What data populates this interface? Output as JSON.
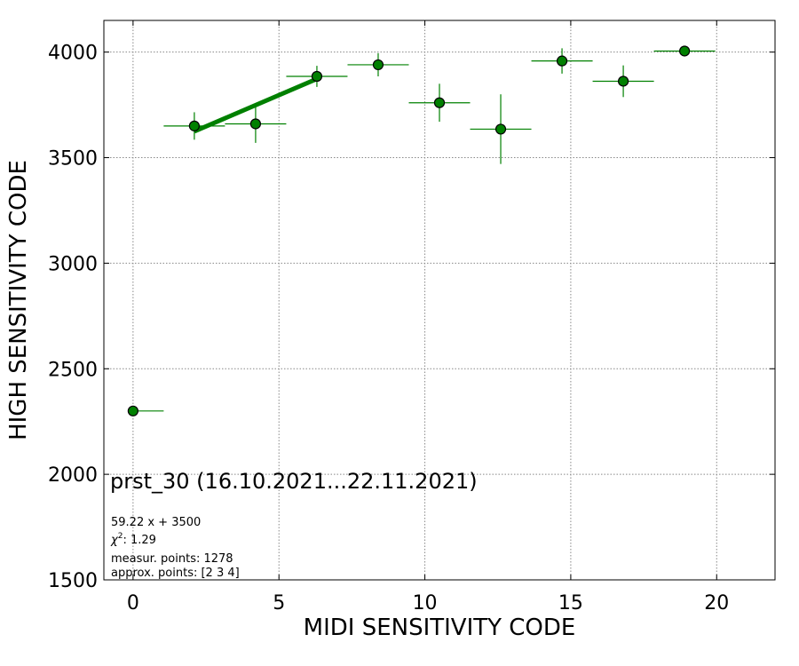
{
  "chart_data": {
    "type": "scatter",
    "title": "prst_30 (16.10.2021...22.11.2021)",
    "xlabel": "MIDI SENSITIVITY CODE",
    "ylabel": "HIGH SENSITIVITY CODE",
    "xlim": [
      -1,
      22
    ],
    "ylim": [
      1500,
      4150
    ],
    "xticks": [
      0,
      5,
      10,
      15,
      20
    ],
    "yticks": [
      1500,
      2000,
      2500,
      3000,
      3500,
      4000
    ],
    "grid": true,
    "marker_color": "#008000",
    "points": [
      {
        "x": 0.0,
        "y": 2300,
        "xerr": [
          0.0,
          1.05
        ],
        "yerr": [
          0,
          0
        ]
      },
      {
        "x": 2.1,
        "y": 3650,
        "xerr": [
          1.05,
          1.05
        ],
        "yerr": [
          65,
          65
        ]
      },
      {
        "x": 4.2,
        "y": 3660,
        "xerr": [
          1.05,
          1.05
        ],
        "yerr": [
          90,
          90
        ]
      },
      {
        "x": 6.3,
        "y": 3885,
        "xerr": [
          1.05,
          1.05
        ],
        "yerr": [
          50,
          50
        ]
      },
      {
        "x": 8.4,
        "y": 3940,
        "xerr": [
          1.05,
          1.05
        ],
        "yerr": [
          55,
          55
        ]
      },
      {
        "x": 10.5,
        "y": 3760,
        "xerr": [
          1.05,
          1.05
        ],
        "yerr": [
          90,
          90
        ]
      },
      {
        "x": 12.6,
        "y": 3635,
        "xerr": [
          1.05,
          1.05
        ],
        "yerr": [
          165,
          165
        ]
      },
      {
        "x": 14.7,
        "y": 3958,
        "xerr": [
          1.05,
          1.05
        ],
        "yerr": [
          60,
          60
        ]
      },
      {
        "x": 16.8,
        "y": 3862,
        "xerr": [
          1.05,
          1.05
        ],
        "yerr": [
          75,
          75
        ]
      },
      {
        "x": 18.9,
        "y": 4005,
        "xerr": [
          1.05,
          1.05
        ],
        "yerr": [
          20,
          20
        ]
      }
    ],
    "fit_line": {
      "slope": 59.22,
      "intercept": 3500,
      "x_range": [
        2.1,
        6.3
      ],
      "color": "#008000"
    },
    "annotations": {
      "equation": "59.22 x + 3500",
      "chi2_label": "χ",
      "chi2_sup": "2",
      "chi2_value": ": 1.29",
      "measur_points": "measur. points: 1278",
      "approx_points": "approx. points: [2 3 4]"
    }
  }
}
